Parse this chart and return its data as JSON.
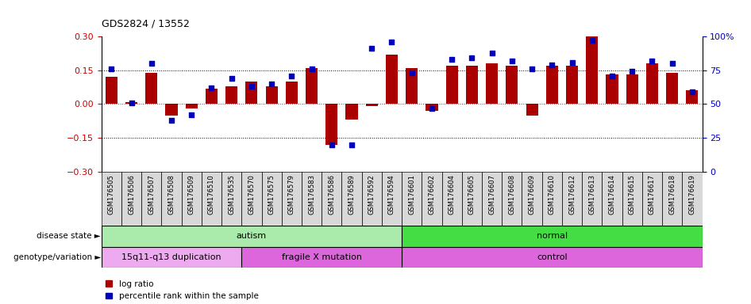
{
  "title": "GDS2824 / 13552",
  "samples": [
    "GSM176505",
    "GSM176506",
    "GSM176507",
    "GSM176508",
    "GSM176509",
    "GSM176510",
    "GSM176535",
    "GSM176570",
    "GSM176575",
    "GSM176579",
    "GSM176583",
    "GSM176586",
    "GSM176589",
    "GSM176592",
    "GSM176594",
    "GSM176601",
    "GSM176602",
    "GSM176604",
    "GSM176605",
    "GSM176607",
    "GSM176608",
    "GSM176609",
    "GSM176610",
    "GSM176612",
    "GSM176613",
    "GSM176614",
    "GSM176615",
    "GSM176617",
    "GSM176618",
    "GSM176619"
  ],
  "log_ratio": [
    0.12,
    0.01,
    0.14,
    -0.05,
    -0.02,
    0.07,
    0.08,
    0.1,
    0.08,
    0.1,
    0.16,
    -0.18,
    -0.07,
    -0.01,
    0.22,
    0.16,
    -0.03,
    0.17,
    0.17,
    0.18,
    0.17,
    -0.05,
    0.17,
    0.17,
    0.3,
    0.13,
    0.13,
    0.18,
    0.14,
    0.06
  ],
  "percentile": [
    76,
    51,
    80,
    38,
    42,
    62,
    69,
    63,
    65,
    71,
    76,
    20,
    20,
    91,
    96,
    73,
    47,
    83,
    84,
    88,
    82,
    76,
    79,
    81,
    97,
    71,
    74,
    82,
    80,
    59
  ],
  "disease_state_groups": [
    {
      "label": "autism",
      "start": 0,
      "end": 15,
      "color": "#aaeaaa"
    },
    {
      "label": "normal",
      "start": 15,
      "end": 30,
      "color": "#44dd44"
    }
  ],
  "genotype_groups": [
    {
      "label": "15q11-q13 duplication",
      "start": 0,
      "end": 7,
      "color": "#eeaaee"
    },
    {
      "label": "fragile X mutation",
      "start": 7,
      "end": 15,
      "color": "#dd66dd"
    },
    {
      "label": "control",
      "start": 15,
      "end": 30,
      "color": "#dd66dd"
    }
  ],
  "bar_color": "#aa0000",
  "dot_color": "#0000bb",
  "ylim_left": [
    -0.3,
    0.3
  ],
  "ylim_right": [
    0,
    100
  ],
  "hline_values": [
    0.15,
    0.0,
    -0.15
  ],
  "background_color": "#ffffff",
  "tick_label_fontsize": 6.0,
  "title_fontsize": 9,
  "xtick_bg": "#d8d8d8"
}
